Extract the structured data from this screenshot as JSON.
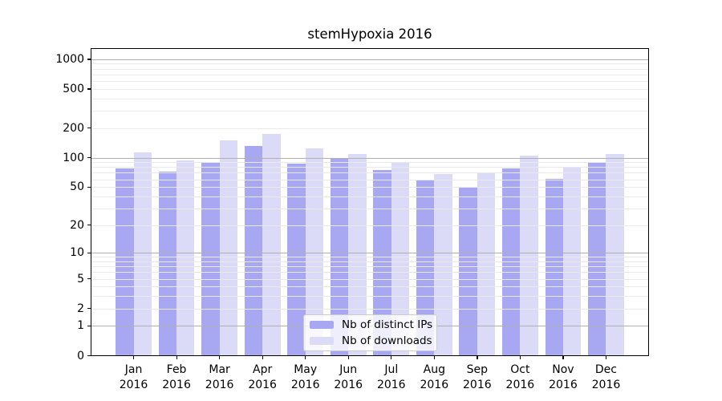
{
  "figure": {
    "title": "stemHypoxia 2016"
  },
  "chart_data": {
    "type": "bar",
    "title": "stemHypoxia 2016",
    "xlabel": "",
    "ylabel": "",
    "yscale": "symlog",
    "ylim": [
      0,
      1295
    ],
    "grid": "both",
    "legend_position": "lower center",
    "categories": [
      "Jan 2016",
      "Feb 2016",
      "Mar 2016",
      "Apr 2016",
      "May 2016",
      "Jun 2016",
      "Jul 2016",
      "Aug 2016",
      "Sep 2016",
      "Oct 2016",
      "Nov 2016",
      "Dec 2016"
    ],
    "y_ticks": [
      0,
      1,
      2,
      5,
      10,
      20,
      50,
      100,
      200,
      500,
      1000
    ],
    "y_major_gridlines": [
      1,
      10,
      100,
      1000
    ],
    "y_minor_gridlines": [
      2,
      3,
      4,
      5,
      6,
      7,
      8,
      9,
      20,
      30,
      40,
      50,
      60,
      70,
      80,
      90,
      200,
      300,
      400,
      500,
      600,
      700,
      800,
      900
    ],
    "series": [
      {
        "name": "Nb of distinct IPs",
        "color": "#a8a8f2",
        "values": [
          77,
          72,
          88,
          132,
          87,
          97,
          74,
          58,
          50,
          78,
          61,
          88
        ]
      },
      {
        "name": "Nb of downloads",
        "color": "#dbdbf8",
        "values": [
          113,
          93,
          150,
          174,
          125,
          109,
          90,
          68,
          69,
          105,
          80,
          108
        ]
      }
    ],
    "colors": {
      "major_grid": "#b0b0b0",
      "minor_grid": "#e9e9e9",
      "axis": "#000000",
      "legend_border": "#cccccc",
      "background": "#ffffff"
    }
  }
}
